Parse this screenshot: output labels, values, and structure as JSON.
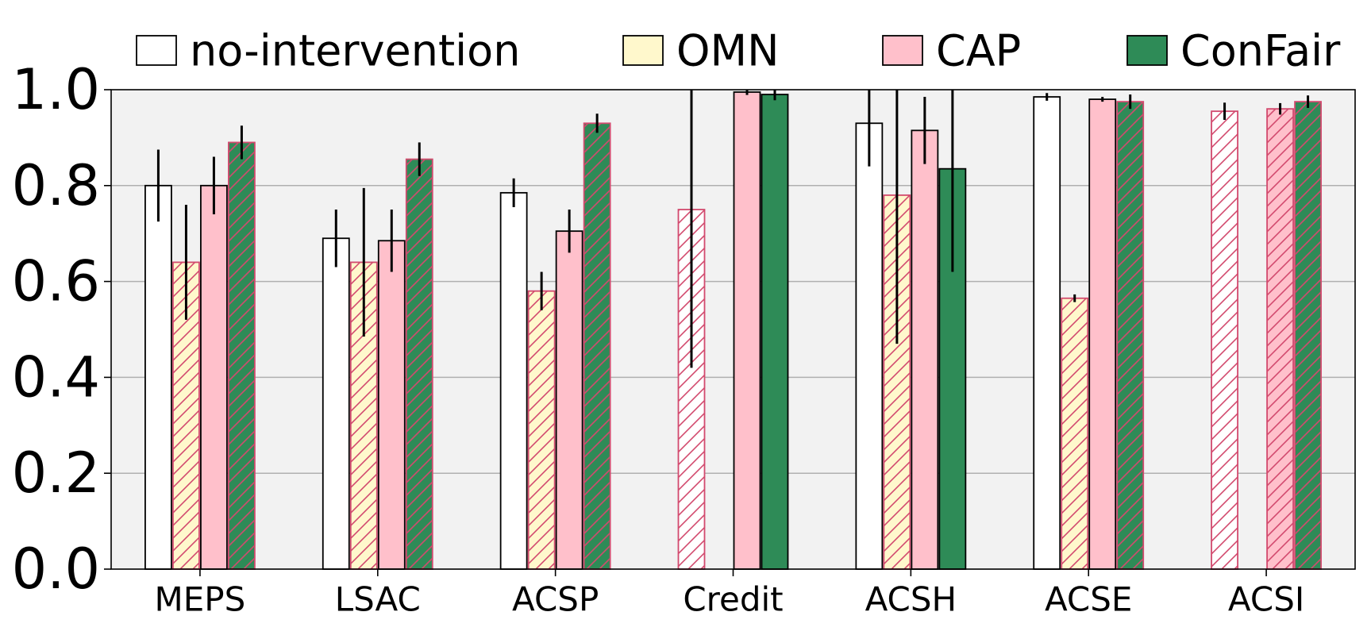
{
  "chart_data": {
    "type": "bar",
    "title": "",
    "xlabel": "",
    "ylabel": "",
    "ylim": [
      0,
      1.0
    ],
    "yticks": [
      "0.0",
      "0.2",
      "0.4",
      "0.6",
      "0.8",
      "1.0"
    ],
    "grid": "horizontal",
    "legend_position": "top",
    "categories": [
      "MEPS",
      "LSAC",
      "ACSP",
      "Credit",
      "ACSH",
      "ACSE",
      "ACSI"
    ],
    "series": [
      {
        "name": "no-intervention",
        "color": "#ffffff",
        "values": [
          0.8,
          0.69,
          0.785,
          0.75,
          0.93,
          0.985,
          0.955
        ],
        "errors": [
          0.075,
          0.06,
          0.03,
          0.33,
          0.09,
          0.008,
          0.018
        ],
        "hatched": [
          false,
          false,
          false,
          true,
          false,
          false,
          true
        ]
      },
      {
        "name": "OMN",
        "color": "#fff8cc",
        "values": [
          0.64,
          0.64,
          0.58,
          0.0,
          0.78,
          0.565,
          0.0
        ],
        "errors": [
          0.12,
          0.155,
          0.04,
          0.0,
          0.31,
          0.008,
          0.0
        ],
        "hatched": [
          true,
          true,
          true,
          false,
          true,
          true,
          false
        ]
      },
      {
        "name": "CAP",
        "color": "#ffc0cb",
        "values": [
          0.8,
          0.685,
          0.705,
          0.995,
          0.915,
          0.98,
          0.96
        ],
        "errors": [
          0.06,
          0.065,
          0.045,
          0.006,
          0.07,
          0.005,
          0.012
        ],
        "hatched": [
          false,
          false,
          false,
          false,
          false,
          false,
          true
        ]
      },
      {
        "name": "ConFair",
        "color": "#2e8b57",
        "values": [
          0.89,
          0.855,
          0.93,
          0.99,
          0.835,
          0.975,
          0.975
        ],
        "errors": [
          0.035,
          0.035,
          0.02,
          0.012,
          0.215,
          0.015,
          0.013
        ],
        "hatched": [
          true,
          true,
          true,
          false,
          false,
          true,
          true
        ]
      }
    ]
  }
}
